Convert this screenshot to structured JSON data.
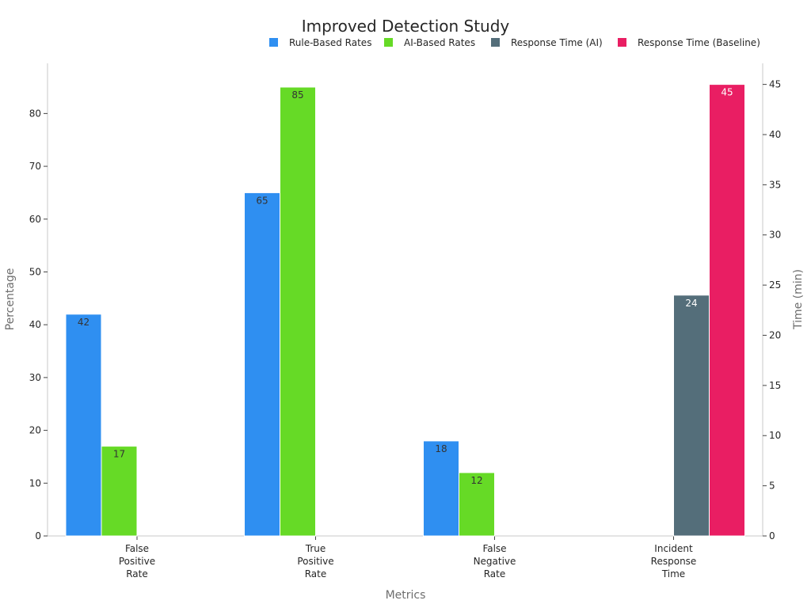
{
  "chart_data": {
    "type": "bar",
    "title": "Improved Detection Study",
    "xlabel": "Metrics",
    "ylabel": "Percentage",
    "y2label": "Time (min)",
    "categories": [
      [
        "False",
        "Positive",
        "Rate"
      ],
      [
        "True",
        "Positive",
        "Rate"
      ],
      [
        "False",
        "Negative",
        "Rate"
      ],
      [
        "Incident",
        "Response",
        "Time"
      ]
    ],
    "ylim": [
      0,
      89.5
    ],
    "y2lim": [
      0,
      47.1
    ],
    "yticks": [
      0,
      10,
      20,
      30,
      40,
      50,
      60,
      70,
      80
    ],
    "y2ticks": [
      0,
      5,
      10,
      15,
      20,
      25,
      30,
      35,
      40,
      45
    ],
    "legend_position": "top-right",
    "grid": false,
    "series": [
      {
        "name": "Rule-Based Rates",
        "axis": "left",
        "color": "#2f8ff1",
        "values": [
          42,
          65,
          18,
          null
        ]
      },
      {
        "name": "AI-Based Rates",
        "axis": "left",
        "color": "#66da26",
        "values": [
          17,
          85,
          12,
          null
        ]
      },
      {
        "name": "Response Time (AI)",
        "axis": "right",
        "color": "#546e7a",
        "values": [
          null,
          null,
          null,
          24
        ]
      },
      {
        "name": "Response Time (Baseline)",
        "axis": "right",
        "color": "#e91e63",
        "values": [
          null,
          null,
          null,
          45
        ]
      }
    ]
  }
}
